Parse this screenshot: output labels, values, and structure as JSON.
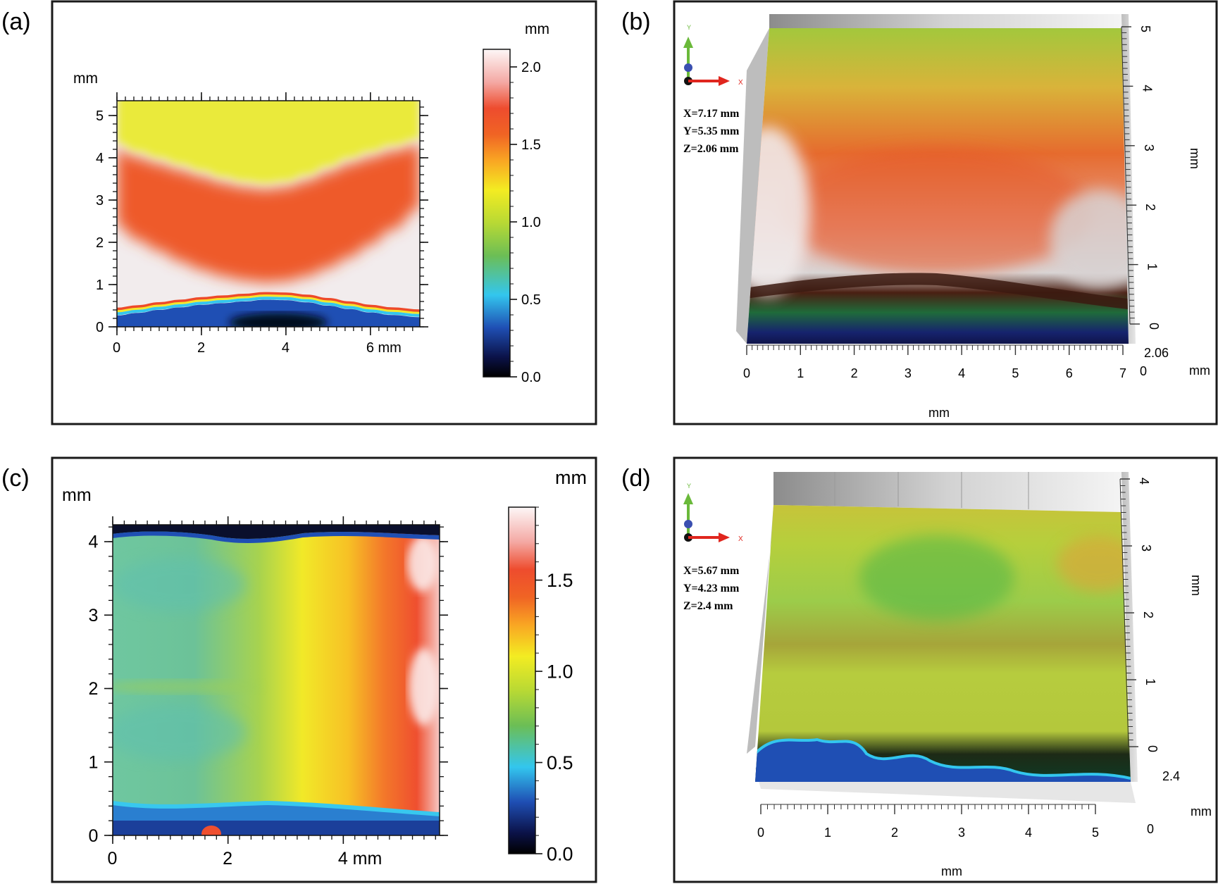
{
  "chart_data": [
    {
      "id": "a",
      "panel_label": "(a)",
      "type": "heatmap",
      "view": "2D height map",
      "x_unit_label": "mm",
      "y_unit_label": "mm",
      "xlim": [
        0,
        7.17
      ],
      "ylim": [
        0,
        5.35
      ],
      "x_ticks": [
        0,
        2,
        4,
        6
      ],
      "x_tick_labels": [
        "0",
        "2",
        "4",
        "6 mm"
      ],
      "y_ticks": [
        0,
        1,
        2,
        3,
        4,
        5
      ],
      "y_tick_labels": [
        "0",
        "1",
        "2",
        "3",
        "4",
        "5"
      ],
      "colorbar": {
        "unit": "mm",
        "range": [
          0,
          2.05
        ],
        "ticks": [
          0,
          0.5,
          1.0,
          1.5,
          2.0
        ],
        "tick_labels": [
          "0.0",
          "0.5",
          "1.0",
          "1.5",
          "2.0"
        ]
      },
      "profile": {
        "x": [
          0,
          0.5,
          1,
          1.5,
          2,
          2.5,
          3,
          3.5,
          4,
          4.5,
          5,
          5.5,
          6,
          6.5,
          7.17
        ],
        "ridge_y": [
          0.37,
          0.43,
          0.5,
          0.56,
          0.62,
          0.66,
          0.7,
          0.74,
          0.73,
          0.68,
          0.6,
          0.52,
          0.44,
          0.38,
          0.33
        ],
        "band_low": [
          2.4,
          2.05,
          1.8,
          1.55,
          1.35,
          1.2,
          1.1,
          1.05,
          1.08,
          1.2,
          1.4,
          1.65,
          1.95,
          2.3,
          2.8
        ],
        "band_high": [
          4.2,
          4.0,
          3.85,
          3.7,
          3.55,
          3.4,
          3.3,
          3.25,
          3.3,
          3.45,
          3.65,
          3.85,
          4.0,
          4.15,
          4.3
        ]
      }
    },
    {
      "id": "b",
      "panel_label": "(b)",
      "type": "heatmap",
      "view": "3D surface",
      "x_unit_label": "mm",
      "y_unit_label": "mm",
      "z_unit_label": "mm",
      "x_ticks": [
        "0",
        "1",
        "2",
        "3",
        "4",
        "5",
        "6",
        "7"
      ],
      "y_ticks": [
        "0",
        "1",
        "2",
        "3",
        "4",
        "5"
      ],
      "z_ticks": [
        "0",
        "2.06"
      ],
      "dimensions": [
        "X=7.17 mm",
        "Y=5.35 mm",
        "Z=2.06 mm"
      ],
      "axis_letters": {
        "y": "Y",
        "x": "X"
      }
    },
    {
      "id": "c",
      "panel_label": "(c)",
      "type": "heatmap",
      "view": "2D height map",
      "x_unit_label": "mm",
      "y_unit_label": "mm",
      "xlim": [
        0,
        5.67
      ],
      "ylim": [
        0,
        4.23
      ],
      "x_ticks": [
        0,
        2,
        4
      ],
      "x_tick_labels": [
        "0",
        "2",
        "4 mm"
      ],
      "y_ticks": [
        0,
        1,
        2,
        3,
        4
      ],
      "y_tick_labels": [
        "0",
        "1",
        "2",
        "3",
        "4"
      ],
      "colorbar": {
        "unit": "mm",
        "range": [
          0,
          1.9
        ],
        "ticks": [
          0,
          0.5,
          1.0,
          1.5
        ],
        "tick_labels": [
          "0.0",
          "0.5",
          "1.0",
          "1.5"
        ]
      },
      "profile": {
        "x": [
          0,
          0.5,
          1,
          1.5,
          2,
          2.5,
          3,
          3.5,
          4,
          4.5,
          5,
          5.67
        ],
        "height": [
          0.75,
          0.74,
          0.76,
          0.8,
          0.86,
          0.93,
          1.0,
          1.1,
          1.28,
          1.48,
          1.62,
          1.72
        ]
      }
    },
    {
      "id": "d",
      "panel_label": "(d)",
      "type": "heatmap",
      "view": "3D surface",
      "x_unit_label": "mm",
      "y_unit_label": "mm",
      "z_unit_label": "mm",
      "x_ticks": [
        "0",
        "1",
        "2",
        "3",
        "4",
        "5"
      ],
      "y_ticks": [
        "0",
        "1",
        "2",
        "3",
        "4"
      ],
      "z_ticks": [
        "0",
        "2.4"
      ],
      "dimensions": [
        "X=5.67 mm",
        "Y=4.23 mm",
        "Z=2.4  mm"
      ],
      "axis_letters": {
        "y": "Y",
        "x": "X"
      }
    }
  ]
}
